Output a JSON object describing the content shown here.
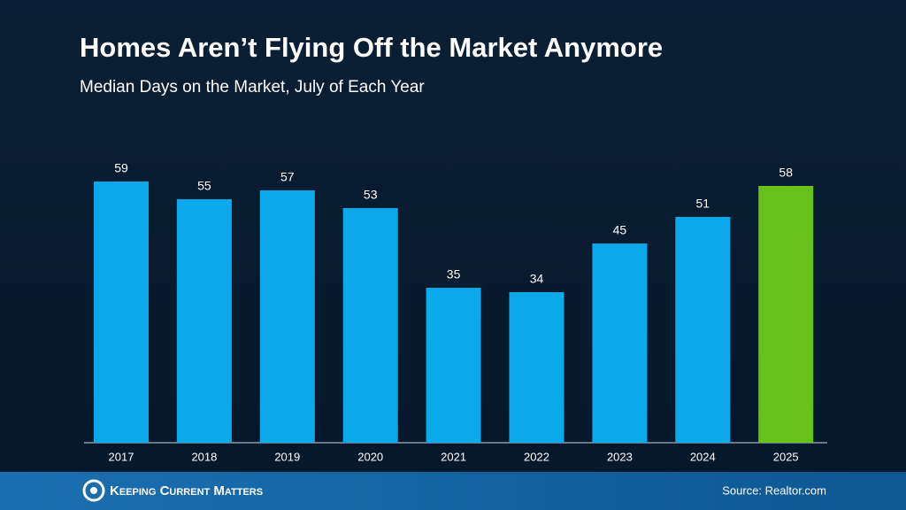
{
  "chart_data": {
    "type": "bar",
    "title": "Homes Aren’t Flying Off the Market Anymore",
    "subtitle": "Median Days on the Market, July of Each Year",
    "categories": [
      "2017",
      "2018",
      "2019",
      "2020",
      "2021",
      "2022",
      "2023",
      "2024",
      "2025"
    ],
    "values": [
      59,
      55,
      57,
      53,
      35,
      34,
      45,
      51,
      58
    ],
    "colors": [
      "#0ba9ea",
      "#0ba9ea",
      "#0ba9ea",
      "#0ba9ea",
      "#0ba9ea",
      "#0ba9ea",
      "#0ba9ea",
      "#0ba9ea",
      "#66c21a"
    ]
  },
  "footer": {
    "brand": "Keeping Current Matters",
    "source": "Source: Realtor.com"
  }
}
